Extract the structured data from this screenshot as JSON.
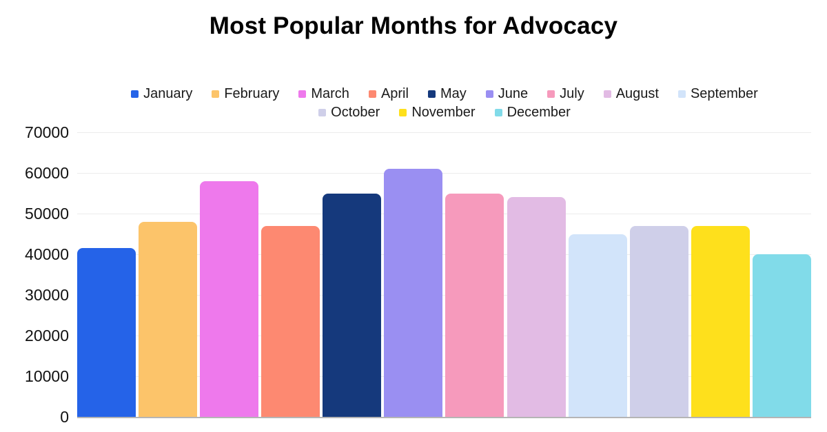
{
  "page": {
    "background_color": "#ffffff"
  },
  "chart_data": {
    "type": "bar",
    "title": "Most Popular Months for Advocacy",
    "categories": [
      "January",
      "February",
      "March",
      "April",
      "May",
      "June",
      "July",
      "August",
      "September",
      "October",
      "November",
      "December"
    ],
    "values": [
      41500,
      48000,
      58000,
      47000,
      55000,
      61000,
      55000,
      54000,
      45000,
      47000,
      47000,
      40000
    ],
    "colors": [
      "#2563e8",
      "#fcc46a",
      "#ee79ec",
      "#fd8971",
      "#15397c",
      "#9a8ff2",
      "#f69abc",
      "#e2bbe4",
      "#d2e4fa",
      "#cfcfe9",
      "#fee01c",
      "#81dbe9"
    ],
    "xlabel": "",
    "ylabel": "",
    "ylim": [
      0,
      70000
    ],
    "yticks": [
      70000,
      60000,
      50000,
      40000,
      30000,
      20000,
      10000,
      0
    ],
    "grid": true,
    "legend_position": "top",
    "legend_rows": [
      9,
      3
    ]
  },
  "style": {
    "grid_color": "#ececec",
    "baseline_color": "#b5b5b5",
    "title_color": "#000000",
    "legend_text_color": "#1a1a1a",
    "tick_label_color": "#111111"
  }
}
